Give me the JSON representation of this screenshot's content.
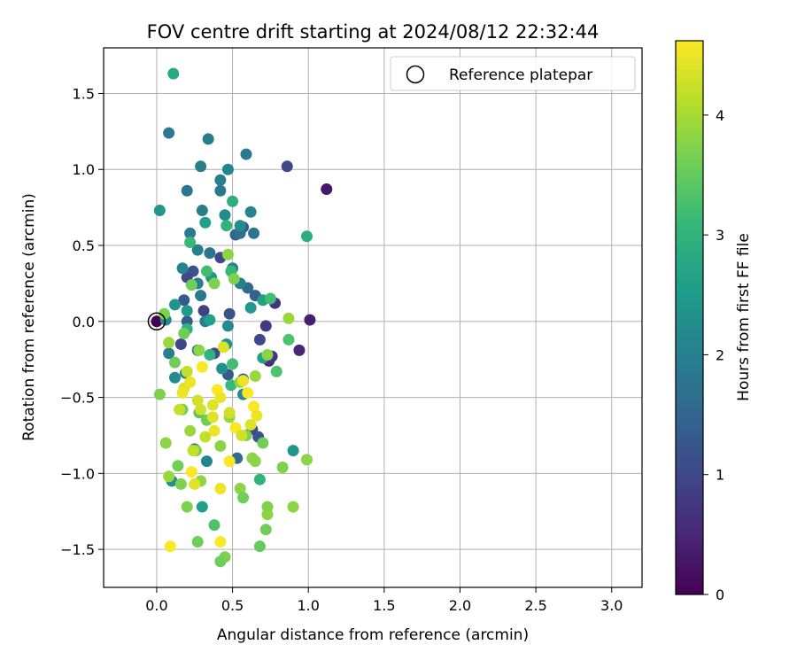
{
  "chart_data": {
    "type": "scatter",
    "title": "FOV centre drift starting at 2024/08/12 22:32:44",
    "xlabel": "Angular distance from reference (arcmin)",
    "ylabel": "Rotation from reference (arcmin)",
    "xlim": [
      -0.35,
      3.2
    ],
    "ylim": [
      -1.75,
      1.8
    ],
    "xticks": [
      0.0,
      0.5,
      1.0,
      1.5,
      2.0,
      2.5,
      3.0
    ],
    "xtick_labels": [
      "0.0",
      "0.5",
      "1.0",
      "1.5",
      "2.0",
      "2.5",
      "3.0"
    ],
    "yticks": [
      -1.5,
      -1.0,
      -0.5,
      0.0,
      0.5,
      1.0,
      1.5
    ],
    "ytick_labels": [
      "−1.5",
      "−1.0",
      "−0.5",
      "0.0",
      "0.5",
      "1.0",
      "1.5"
    ],
    "grid": true,
    "colormap": "viridis",
    "legend": {
      "position": "top-right",
      "entries": [
        {
          "label": "Reference platepar",
          "marker": "open-circle"
        }
      ]
    },
    "colorbar": {
      "label": "Hours from first FF file",
      "range": [
        0,
        4.62
      ],
      "ticks": [
        0,
        1,
        2,
        3,
        4
      ],
      "tick_labels": [
        "0",
        "1",
        "2",
        "3",
        "4"
      ],
      "stops": [
        "#440154",
        "#482878",
        "#3e4989",
        "#31688e",
        "#26828e",
        "#1f9e89",
        "#35b779",
        "#6ece58",
        "#b5de2b",
        "#fde725"
      ]
    },
    "reference_point": {
      "x": 0.0,
      "y": 0.0
    },
    "series": [
      {
        "points": [
          [
            0.0,
            0.0,
            0.0
          ],
          [
            1.12,
            0.87,
            0.3
          ],
          [
            1.01,
            0.01,
            0.4
          ],
          [
            0.94,
            -0.19,
            0.5
          ],
          [
            0.78,
            0.12,
            0.7
          ],
          [
            0.74,
            -0.26,
            0.6
          ],
          [
            0.72,
            -0.03,
            0.8
          ],
          [
            0.68,
            -0.12,
            1.0
          ],
          [
            0.67,
            -0.76,
            1.2
          ],
          [
            0.63,
            -0.71,
            1.1
          ],
          [
            0.76,
            -0.23,
            0.7
          ],
          [
            0.86,
            1.02,
            1.0
          ],
          [
            0.57,
            0.62,
            1.3
          ],
          [
            0.52,
            0.57,
            1.5
          ],
          [
            0.48,
            0.05,
            1.2
          ],
          [
            0.42,
            0.42,
            1.0
          ],
          [
            0.38,
            -0.21,
            1.1
          ],
          [
            0.31,
            0.07,
            0.9
          ],
          [
            0.24,
            0.33,
            1.2
          ],
          [
            0.2,
            0.29,
            1.0
          ],
          [
            0.18,
            0.14,
            1.3
          ],
          [
            0.2,
            0.0,
            1.4
          ],
          [
            0.53,
            -0.9,
            1.6
          ],
          [
            0.47,
            -0.35,
            1.3
          ],
          [
            0.57,
            -0.38,
            1.5
          ],
          [
            0.6,
            0.22,
            1.6
          ],
          [
            0.65,
            0.17,
            1.4
          ],
          [
            0.16,
            -0.15,
            1.0
          ],
          [
            0.08,
            1.24,
            1.9
          ],
          [
            0.34,
            1.2,
            1.9
          ],
          [
            0.59,
            1.1,
            1.9
          ],
          [
            0.29,
            1.02,
            2.0
          ],
          [
            0.47,
            1.0,
            2.1
          ],
          [
            0.42,
            0.93,
            2.0
          ],
          [
            0.2,
            0.86,
            1.8
          ],
          [
            0.42,
            0.86,
            1.9
          ],
          [
            0.3,
            0.73,
            2.0
          ],
          [
            0.45,
            0.7,
            2.2
          ],
          [
            0.62,
            0.72,
            2.1
          ],
          [
            0.22,
            0.58,
            1.9
          ],
          [
            0.55,
            0.58,
            1.7
          ],
          [
            0.64,
            0.58,
            1.8
          ],
          [
            0.27,
            0.47,
            2.0
          ],
          [
            0.35,
            0.45,
            1.8
          ],
          [
            0.17,
            0.35,
            2.1
          ],
          [
            0.5,
            0.35,
            2.1
          ],
          [
            0.27,
            0.25,
            2.0
          ],
          [
            0.55,
            0.25,
            2.0
          ],
          [
            0.29,
            0.17,
            1.9
          ],
          [
            0.32,
            0.0,
            2.0
          ],
          [
            0.47,
            -0.03,
            2.2
          ],
          [
            0.27,
            -0.19,
            2.0
          ],
          [
            0.08,
            -0.21,
            2.0
          ],
          [
            0.19,
            -0.34,
            2.0
          ],
          [
            0.57,
            -0.48,
            2.2
          ],
          [
            0.33,
            -0.92,
            2.1
          ],
          [
            0.25,
            -0.84,
            1.9
          ],
          [
            0.12,
            -0.37,
            2.2
          ],
          [
            0.43,
            -0.31,
            2.3
          ],
          [
            0.06,
            0.01,
            2.2
          ],
          [
            0.02,
            0.73,
            2.4
          ],
          [
            0.12,
            0.11,
            2.4
          ],
          [
            0.55,
            0.63,
            2.3
          ],
          [
            0.36,
            0.29,
            2.4
          ],
          [
            0.62,
            0.09,
            2.5
          ],
          [
            0.2,
            0.07,
            2.5
          ],
          [
            0.46,
            -0.15,
            2.4
          ],
          [
            0.7,
            -0.24,
            2.6
          ],
          [
            0.9,
            -0.85,
            2.4
          ],
          [
            0.7,
            0.14,
            2.6
          ],
          [
            0.32,
            0.65,
            2.6
          ],
          [
            0.1,
            -1.05,
            2.3
          ],
          [
            0.3,
            -1.22,
            2.6
          ],
          [
            0.35,
            0.01,
            2.6
          ],
          [
            0.11,
            1.63,
            2.8
          ],
          [
            0.5,
            0.79,
            2.9
          ],
          [
            0.99,
            0.56,
            2.9
          ],
          [
            0.46,
            0.63,
            3.0
          ],
          [
            0.22,
            0.52,
            3.1
          ],
          [
            0.33,
            0.33,
            3.2
          ],
          [
            0.49,
            0.33,
            3.1
          ],
          [
            0.75,
            0.15,
            3.2
          ],
          [
            0.87,
            -0.12,
            3.3
          ],
          [
            0.35,
            -0.22,
            3.0
          ],
          [
            0.79,
            -0.33,
            3.3
          ],
          [
            0.49,
            -0.42,
            3.1
          ],
          [
            0.68,
            -1.04,
            3.0
          ],
          [
            0.38,
            -1.34,
            3.3
          ],
          [
            0.2,
            -0.05,
            3.0
          ],
          [
            0.28,
            -0.6,
            3.4
          ],
          [
            0.5,
            -0.28,
            3.2
          ],
          [
            0.05,
            0.05,
            3.7
          ],
          [
            0.23,
            0.24,
            3.6
          ],
          [
            0.38,
            0.25,
            3.7
          ],
          [
            0.47,
            0.44,
            3.8
          ],
          [
            0.51,
            0.28,
            3.7
          ],
          [
            0.55,
            -0.4,
            3.8
          ],
          [
            0.87,
            0.02,
            3.9
          ],
          [
            0.02,
            -0.48,
            3.7
          ],
          [
            0.18,
            -0.08,
            3.6
          ],
          [
            0.28,
            -0.19,
            3.8
          ],
          [
            0.08,
            -0.14,
            3.9
          ],
          [
            0.12,
            -0.27,
            3.6
          ],
          [
            0.65,
            -0.36,
            3.9
          ],
          [
            0.73,
            -0.22,
            3.8
          ],
          [
            0.06,
            -0.8,
            3.8
          ],
          [
            0.17,
            -0.58,
            3.6
          ],
          [
            0.22,
            -0.72,
            3.9
          ],
          [
            0.26,
            -0.85,
            3.7
          ],
          [
            0.33,
            -0.65,
            3.6
          ],
          [
            0.42,
            -0.82,
            3.8
          ],
          [
            0.48,
            -0.63,
            3.9
          ],
          [
            0.59,
            -0.75,
            3.7
          ],
          [
            0.63,
            -0.9,
            3.8
          ],
          [
            0.7,
            -0.8,
            3.6
          ],
          [
            0.14,
            -0.95,
            3.6
          ],
          [
            0.2,
            -1.22,
            3.7
          ],
          [
            0.29,
            -1.05,
            3.8
          ],
          [
            0.45,
            -1.55,
            3.7
          ],
          [
            0.42,
            -1.58,
            3.6
          ],
          [
            0.55,
            -1.1,
            3.8
          ],
          [
            0.57,
            -1.16,
            3.6
          ],
          [
            0.73,
            -1.22,
            3.7
          ],
          [
            0.73,
            -1.27,
            3.8
          ],
          [
            0.72,
            -1.37,
            3.6
          ],
          [
            0.68,
            -1.48,
            3.5
          ],
          [
            0.9,
            -1.22,
            3.8
          ],
          [
            0.99,
            -0.91,
            3.8
          ],
          [
            0.83,
            -0.96,
            3.7
          ],
          [
            0.27,
            -1.45,
            3.6
          ],
          [
            0.16,
            -1.07,
            3.7
          ],
          [
            0.08,
            -1.02,
            3.9
          ],
          [
            0.65,
            -0.92,
            3.8
          ],
          [
            0.15,
            -0.58,
            4.2
          ],
          [
            0.18,
            -0.44,
            4.4
          ],
          [
            0.22,
            -0.4,
            4.5
          ],
          [
            0.27,
            -0.52,
            4.3
          ],
          [
            0.3,
            -0.3,
            4.6
          ],
          [
            0.37,
            -0.55,
            4.4
          ],
          [
            0.4,
            -0.45,
            4.6
          ],
          [
            0.42,
            -0.5,
            4.5
          ],
          [
            0.44,
            -0.17,
            4.4
          ],
          [
            0.48,
            -0.6,
            4.3
          ],
          [
            0.52,
            -0.7,
            4.6
          ],
          [
            0.57,
            -0.39,
            4.5
          ],
          [
            0.6,
            -0.47,
            4.6
          ],
          [
            0.64,
            -0.56,
            4.6
          ],
          [
            0.66,
            -0.62,
            4.5
          ],
          [
            0.62,
            -0.68,
            4.4
          ],
          [
            0.56,
            -0.75,
            4.3
          ],
          [
            0.48,
            -0.92,
            4.6
          ],
          [
            0.38,
            -0.72,
            4.5
          ],
          [
            0.32,
            -0.76,
            4.2
          ],
          [
            0.23,
            -0.99,
            4.6
          ],
          [
            0.25,
            -1.07,
            4.4
          ],
          [
            0.09,
            -1.48,
            4.6
          ],
          [
            0.42,
            -1.45,
            4.6
          ],
          [
            0.42,
            -1.1,
            4.5
          ],
          [
            0.2,
            -0.33,
            4.2
          ],
          [
            0.29,
            -0.58,
            4.3
          ],
          [
            0.37,
            -0.63,
            4.4
          ],
          [
            0.17,
            -0.47,
            4.5
          ],
          [
            0.24,
            -0.85,
            4.2
          ]
        ]
      }
    ]
  }
}
